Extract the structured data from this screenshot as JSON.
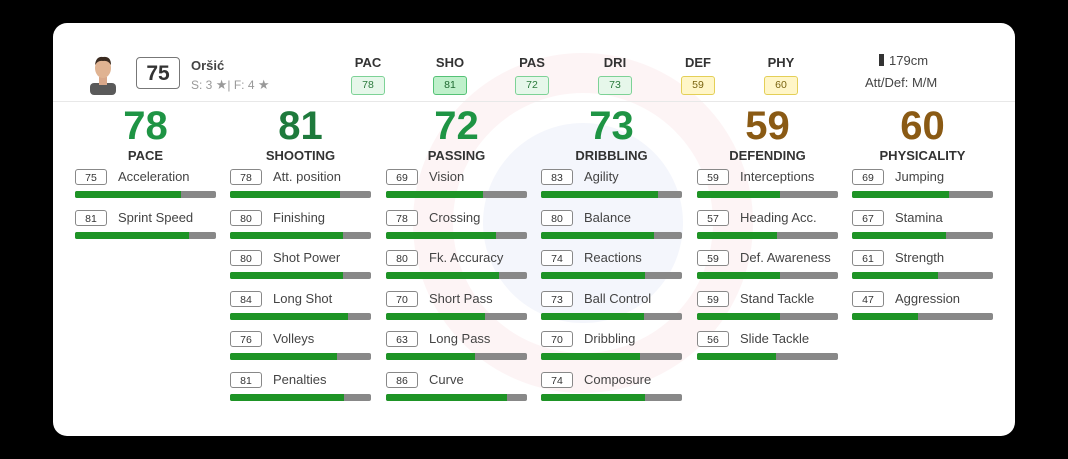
{
  "player": {
    "overall": "75",
    "name": "Oršić",
    "skills_label": "S: 3",
    "sep": "|",
    "weakfoot_label": "F: 4",
    "height": "179cm",
    "att_def": "Att/Def: M/M"
  },
  "header_stats": [
    {
      "label": "PAC",
      "value": "78",
      "style": "green"
    },
    {
      "label": "SHO",
      "value": "81",
      "style": "green-strong"
    },
    {
      "label": "PAS",
      "value": "72",
      "style": "green"
    },
    {
      "label": "DRI",
      "value": "73",
      "style": "green"
    },
    {
      "label": "DEF",
      "value": "59",
      "style": "yellow"
    },
    {
      "label": "PHY",
      "value": "60",
      "style": "yellow"
    }
  ],
  "categories": [
    {
      "name": "PACE",
      "value": "78",
      "color": "#1e9444",
      "attributes": [
        {
          "value": "75",
          "name": "Acceleration"
        },
        {
          "value": "81",
          "name": "Sprint Speed"
        }
      ]
    },
    {
      "name": "SHOOTING",
      "value": "81",
      "color": "#1e7a3c",
      "attributes": [
        {
          "value": "78",
          "name": "Att. position"
        },
        {
          "value": "80",
          "name": "Finishing"
        },
        {
          "value": "80",
          "name": "Shot Power"
        },
        {
          "value": "84",
          "name": "Long Shot"
        },
        {
          "value": "76",
          "name": "Volleys"
        },
        {
          "value": "81",
          "name": "Penalties"
        }
      ]
    },
    {
      "name": "PASSING",
      "value": "72",
      "color": "#1e9444",
      "attributes": [
        {
          "value": "69",
          "name": "Vision"
        },
        {
          "value": "78",
          "name": "Crossing"
        },
        {
          "value": "80",
          "name": "Fk. Accuracy"
        },
        {
          "value": "70",
          "name": "Short Pass"
        },
        {
          "value": "63",
          "name": "Long Pass"
        },
        {
          "value": "86",
          "name": "Curve"
        }
      ]
    },
    {
      "name": "DRIBBLING",
      "value": "73",
      "color": "#1e9444",
      "attributes": [
        {
          "value": "83",
          "name": "Agility"
        },
        {
          "value": "80",
          "name": "Balance"
        },
        {
          "value": "74",
          "name": "Reactions"
        },
        {
          "value": "73",
          "name": "Ball Control"
        },
        {
          "value": "70",
          "name": "Dribbling"
        },
        {
          "value": "74",
          "name": "Composure"
        }
      ]
    },
    {
      "name": "DEFENDING",
      "value": "59",
      "color": "#8a5a14",
      "attributes": [
        {
          "value": "59",
          "name": "Interceptions"
        },
        {
          "value": "57",
          "name": "Heading Acc."
        },
        {
          "value": "59",
          "name": "Def. Awareness"
        },
        {
          "value": "59",
          "name": "Stand Tackle"
        },
        {
          "value": "56",
          "name": "Slide Tackle"
        }
      ]
    },
    {
      "name": "PHYSICALITY",
      "value": "60",
      "color": "#8a5a14",
      "attributes": [
        {
          "value": "69",
          "name": "Jumping"
        },
        {
          "value": "67",
          "name": "Stamina"
        },
        {
          "value": "61",
          "name": "Strength"
        },
        {
          "value": "47",
          "name": "Aggression"
        }
      ]
    }
  ]
}
